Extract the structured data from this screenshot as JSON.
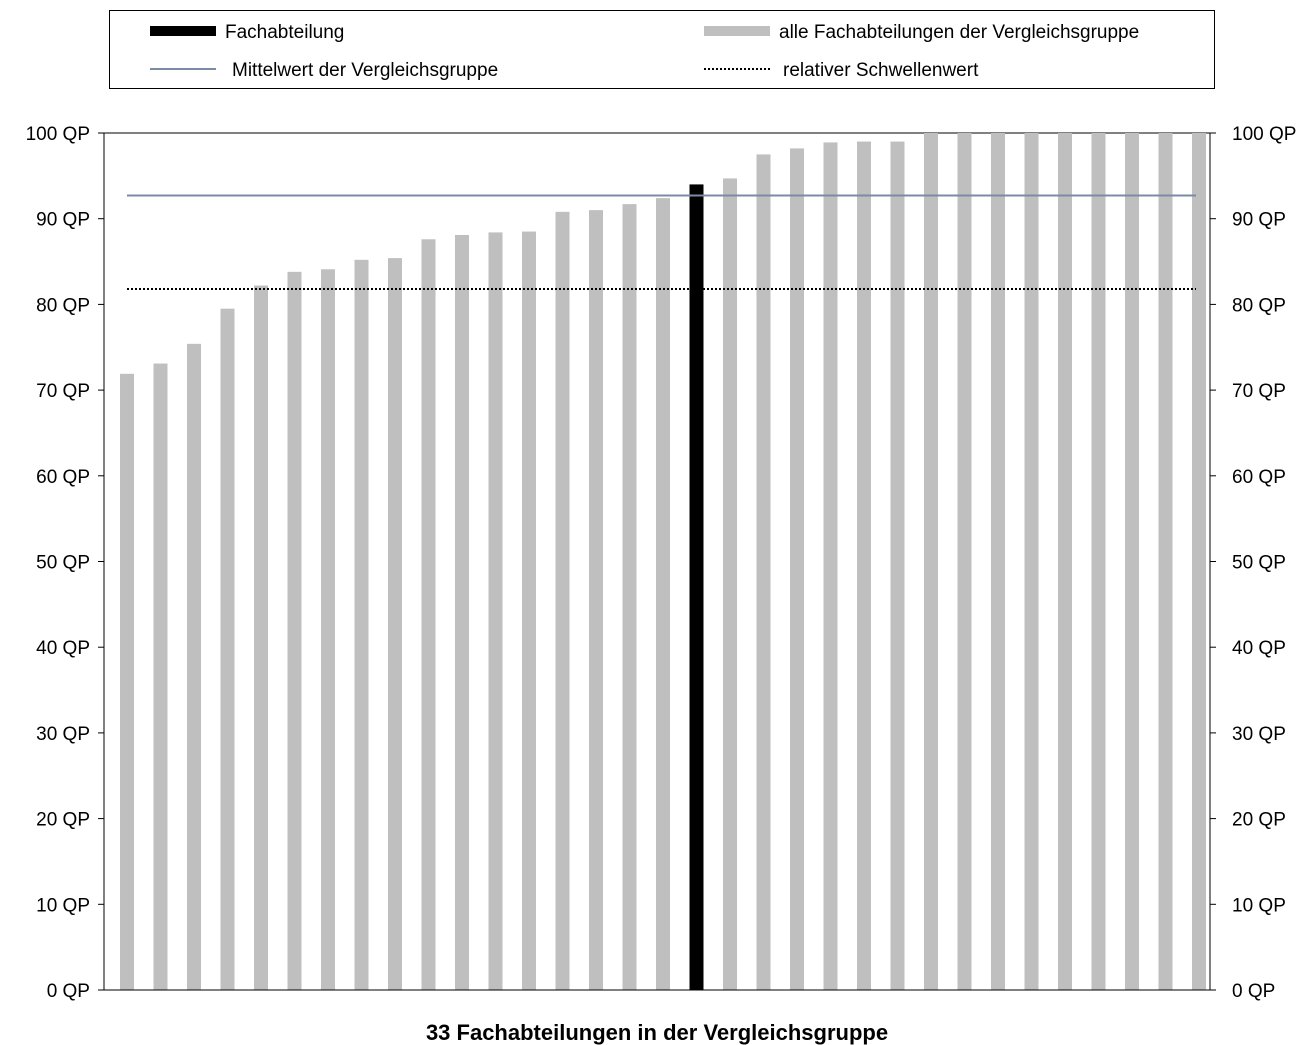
{
  "chart_data": {
    "type": "bar",
    "title": "",
    "xlabel": "33 Fachabteilungen in der Vergleichsgruppe",
    "ylabel": "",
    "ylim": [
      0,
      100
    ],
    "ytick_step": 10,
    "ytick_suffix": " QP",
    "grid": false,
    "legend_placement": "top",
    "legend": [
      {
        "label": "Fachabteilung",
        "kind": "bar",
        "color": "#000000"
      },
      {
        "label": "alle Fachabteilungen der Vergleichsgruppe",
        "kind": "bar",
        "color": "#bfbfbf"
      },
      {
        "label": "Mittelwert der Vergleichsgruppe",
        "kind": "line",
        "color": "#7a8ba6"
      },
      {
        "label": "relativer Schwellenwert",
        "kind": "dotted",
        "color": "#000000"
      }
    ],
    "values": [
      71.9,
      73.1,
      75.4,
      79.5,
      82.2,
      83.8,
      84.1,
      85.2,
      85.4,
      87.6,
      88.1,
      88.4,
      88.5,
      90.8,
      91.0,
      91.7,
      92.4,
      94.0,
      94.7,
      97.5,
      98.2,
      98.9,
      99.0,
      99.0,
      100,
      100,
      100,
      100,
      100,
      100,
      100,
      100,
      100
    ],
    "highlight_index": 17,
    "bar_color": "#bfbfbf",
    "highlight_color": "#000000",
    "mean_value": 92.7,
    "mean_color": "#7a8ba6",
    "threshold_value": 81.8,
    "threshold_color": "#000000"
  }
}
